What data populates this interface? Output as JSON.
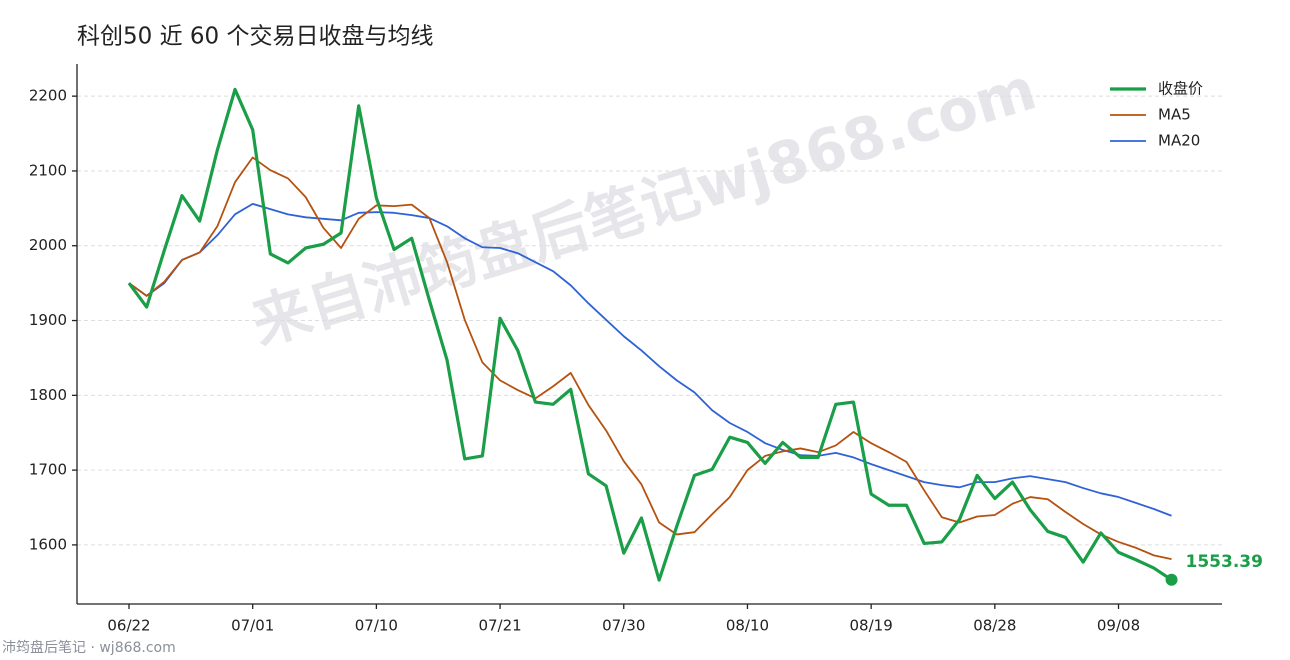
{
  "chart_data": {
    "type": "line",
    "title": "科创50 近 60 个交易日收盘与均线",
    "watermark": "来自沛筠盘后笔记wj868.com",
    "footer": "沛筠盘后笔记 · wj868.com",
    "categories": [
      "06/22",
      null,
      null,
      null,
      null,
      null,
      null,
      "07/01",
      null,
      null,
      null,
      null,
      null,
      null,
      "07/10",
      null,
      null,
      null,
      null,
      null,
      null,
      "07/21",
      null,
      null,
      null,
      null,
      null,
      null,
      "07/30",
      null,
      null,
      null,
      null,
      null,
      null,
      "08/10",
      null,
      null,
      null,
      null,
      null,
      null,
      "08/19",
      null,
      null,
      null,
      null,
      null,
      null,
      "08/28",
      null,
      null,
      null,
      null,
      null,
      null,
      "09/08",
      null,
      null,
      null
    ],
    "series": [
      {
        "name": "收盘价",
        "color": "#1a9e47",
        "width": 3.2,
        "end_marker": true,
        "values": [
          1950,
          1918,
          1994,
          2067,
          2033,
          2128,
          2209,
          2155,
          1989,
          1977,
          1997,
          2002,
          2017,
          2187,
          2064,
          1995,
          2010,
          1927,
          1847,
          1715,
          1719,
          1903,
          1860,
          1791,
          1788,
          1808,
          1695,
          1679,
          1589,
          1636,
          1553,
          1625,
          1693,
          1701,
          1744,
          1737,
          1709,
          1737,
          1717,
          1717,
          1788,
          1791,
          1668,
          1653,
          1653,
          1602,
          1604,
          1634,
          1693,
          1662,
          1684,
          1647,
          1618,
          1610,
          1577,
          1616,
          1590,
          1580,
          1569,
          1553.39
        ]
      },
      {
        "name": "MA5",
        "color": "#b5520f",
        "width": 1.8,
        "values": [
          1950,
          1933,
          1952,
          1981,
          1991,
          2026,
          2085,
          2118,
          2101,
          2090,
          2065,
          2024,
          1997,
          2036,
          2054,
          2053,
          2055,
          2037,
          1978,
          1901,
          1844,
          1820,
          1807,
          1796,
          1812,
          1830,
          1787,
          1753,
          1712,
          1681,
          1630,
          1614,
          1617,
          1641,
          1664,
          1700,
          1719,
          1725,
          1729,
          1724,
          1733,
          1751,
          1736,
          1724,
          1711,
          1673,
          1637,
          1630,
          1638,
          1640,
          1655,
          1664,
          1661,
          1644,
          1628,
          1614,
          1604,
          1596,
          1586,
          1581
        ]
      },
      {
        "name": "MA20",
        "color": "#2f62d6",
        "width": 1.8,
        "values": [
          1950,
          1933,
          1950,
          1981,
          1991,
          2014,
          2042,
          2056,
          2049,
          2042,
          2038,
          2036,
          2034,
          2044,
          2045,
          2044,
          2041,
          2037,
          2026,
          2010,
          1998,
          1997,
          1990,
          1978,
          1966,
          1947,
          1923,
          1901,
          1879,
          1860,
          1839,
          1820,
          1804,
          1780,
          1763,
          1751,
          1736,
          1727,
          1720,
          1719,
          1723,
          1717,
          1708,
          1700,
          1692,
          1684,
          1680,
          1677,
          1684,
          1684,
          1689,
          1692,
          1688,
          1684,
          1676,
          1669,
          1664,
          1656,
          1648,
          1639
        ]
      }
    ],
    "ylim": [
      1521,
      2243
    ],
    "yticks": [
      1600,
      1700,
      1800,
      1900,
      2000,
      2100,
      2200
    ],
    "grid": true,
    "legend": "upper right"
  }
}
